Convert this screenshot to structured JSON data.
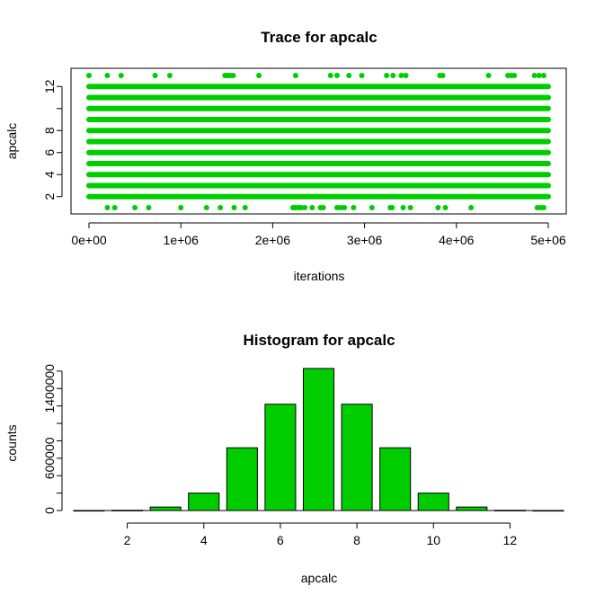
{
  "colors": {
    "series": "#00cd00",
    "axis": "#000000",
    "background": "#ffffff"
  },
  "chart_data": [
    {
      "type": "scatter",
      "title": "Trace for  apcalc",
      "xlabel": "iterations",
      "ylabel": "apcalc",
      "xlim": [
        0,
        5000000
      ],
      "ylim": [
        1,
        13
      ],
      "x_tick_values": [
        0,
        1000000,
        2000000,
        3000000,
        4000000,
        5000000
      ],
      "x_tick_labels": [
        "0e+00",
        "1e+06",
        "2e+06",
        "3e+06",
        "4e+06",
        "5e+06"
      ],
      "y_tick_values": [
        2,
        4,
        6,
        8,
        12
      ],
      "y_tick_labels": [
        "2",
        "4",
        "6",
        "8",
        "12"
      ],
      "dense_levels": [
        2,
        3,
        4,
        5,
        6,
        7,
        8,
        9,
        10,
        11,
        12
      ],
      "sparse_points": {
        "1": [
          200000,
          280000,
          500000,
          650000,
          1000000,
          1280000,
          1430000,
          1580000,
          1700000,
          2220000,
          2240000,
          2260000,
          2290000,
          2310000,
          2350000,
          2430000,
          2520000,
          2550000,
          2700000,
          2740000,
          2780000,
          2880000,
          3080000,
          3280000,
          3300000,
          3420000,
          3500000,
          3800000,
          3880000,
          4160000,
          4880000,
          4920000,
          4950000
        ],
        "13": [
          0,
          200000,
          350000,
          720000,
          880000,
          1480000,
          1500000,
          1520000,
          1540000,
          1570000,
          1850000,
          2250000,
          2630000,
          2700000,
          2830000,
          2970000,
          3240000,
          3310000,
          3400000,
          3450000,
          3820000,
          3850000,
          4350000,
          4560000,
          4600000,
          4630000,
          4850000,
          4900000,
          4950000
        ]
      }
    },
    {
      "type": "bar",
      "title": "Histogram for  apcalc",
      "xlabel": "apcalc",
      "ylabel": "counts",
      "xlim": [
        1,
        13
      ],
      "ylim": [
        0,
        1800000
      ],
      "categories": [
        1,
        2,
        3,
        4,
        5,
        6,
        7,
        8,
        9,
        10,
        11,
        12,
        13
      ],
      "values": [
        300,
        3000,
        40000,
        200000,
        720000,
        1220000,
        1630000,
        1220000,
        720000,
        200000,
        40000,
        3000,
        300
      ],
      "x_tick_values": [
        2,
        4,
        6,
        8,
        10,
        12
      ],
      "x_tick_labels": [
        "2",
        "4",
        "6",
        "8",
        "10",
        "12"
      ],
      "y_tick_values": [
        0,
        600000,
        1400000
      ],
      "y_tick_labels": [
        "0",
        "600000",
        "1400000"
      ],
      "y_tick_values_unlabeled": [
        200000,
        400000,
        800000,
        1000000,
        1200000,
        1600000
      ]
    }
  ]
}
